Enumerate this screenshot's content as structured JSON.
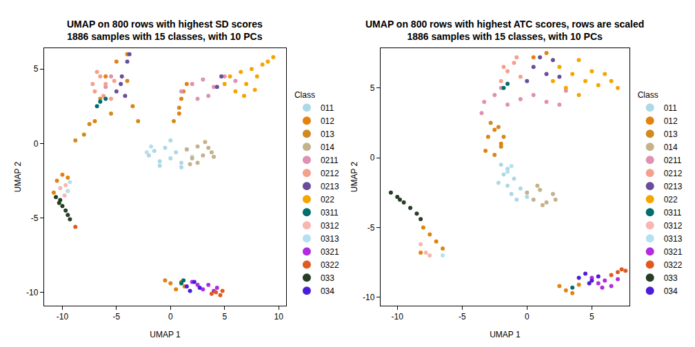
{
  "chart_data": [
    {
      "type": "scatter",
      "title": "UMAP on 800 rows with highest SD scores\n1886 samples with 15 classes, with 10 PCs",
      "xlabel": "UMAP 1",
      "ylabel": "UMAP 2",
      "legend_title": "Class",
      "legend": "right",
      "grid": false,
      "marker": "circle",
      "xlim": [
        -11.7,
        10.7
      ],
      "ylim": [
        -10.9,
        6.4
      ],
      "xticks": [
        -10,
        -5,
        0,
        5,
        10
      ],
      "yticks": [
        -10,
        -5,
        0,
        5
      ],
      "series": [
        {
          "name": "011",
          "color": "#ADD8E6",
          "x": [
            -2,
            -1.5,
            -1,
            -0.5,
            0,
            0.5,
            1,
            1.5,
            2,
            -1,
            0,
            1
          ],
          "y": [
            -0.8,
            -0.5,
            -1.2,
            -0.3,
            -1,
            -0.6,
            -1.3,
            -0.4,
            -0.9,
            -1.5,
            0.2,
            -1.6
          ]
        },
        {
          "name": "012",
          "color": "#E3820E",
          "x": [
            -0.5,
            0,
            0.5,
            1,
            1.3,
            -10.5,
            -10,
            -9.5,
            -10.8,
            -6,
            -5,
            -4,
            -3.5,
            -7,
            1,
            1.5,
            0.8
          ],
          "y": [
            -9.2,
            -9.4,
            -9.8,
            -9.3,
            -9.6,
            -2.5,
            -2.1,
            -2.3,
            -3.3,
            4.5,
            5.5,
            6,
            2.5,
            1.5,
            3,
            4,
            2
          ]
        },
        {
          "name": "013",
          "color": "#D18A1F",
          "x": [
            -8.8,
            -8,
            -7.5,
            -6.5,
            -5.5,
            0.3,
            0.8,
            1.2,
            -4,
            -3
          ],
          "y": [
            0.2,
            0.6,
            1.3,
            3,
            2,
            1.5,
            2.4,
            3.5,
            4.2,
            1.5
          ]
        },
        {
          "name": "014",
          "color": "#C4B28A",
          "x": [
            1.5,
            2,
            2.5,
            3,
            3.5,
            4,
            2.5,
            3.2,
            3.8,
            1.8
          ],
          "y": [
            -0.4,
            -1,
            -0.2,
            -0.8,
            -0.3,
            -0.9,
            -1.3,
            0.1,
            -0.6,
            -1.4
          ]
        },
        {
          "name": "0211",
          "color": "#E090B0",
          "x": [
            1,
            2,
            3,
            4,
            5,
            6,
            2.5,
            3.5,
            -5.5,
            -6
          ],
          "y": [
            3.5,
            4,
            4.3,
            3.8,
            4.5,
            4.2,
            3,
            3.2,
            4.5,
            3.8
          ]
        },
        {
          "name": "0212",
          "color": "#F4A08C",
          "x": [
            -7,
            -6.5,
            -6,
            -5.5,
            -6.8,
            -6.2,
            -5.2,
            -7.2
          ],
          "y": [
            3.5,
            4.5,
            4,
            3,
            4.8,
            3.2,
            4.2,
            4
          ]
        },
        {
          "name": "0213",
          "color": "#6A4C9C",
          "x": [
            -5,
            -4.5,
            -4,
            -3.8,
            -4.2,
            -4.6,
            4.3,
            4.7
          ],
          "y": [
            3.5,
            4.5,
            5.5,
            6,
            3.2,
            4,
            3.8,
            4.5
          ]
        },
        {
          "name": "022",
          "color": "#F5A500",
          "x": [
            5,
            5.5,
            6,
            6.5,
            7,
            7.5,
            8,
            8.5,
            9,
            9.5,
            6.8,
            7.8
          ],
          "y": [
            4,
            4.5,
            3.5,
            4.8,
            4,
            5,
            4.5,
            5.3,
            5.5,
            5.8,
            3.2,
            3.6
          ]
        },
        {
          "name": "0311",
          "color": "#006E6E",
          "x": [
            -6.8,
            -6.5,
            -6,
            1,
            1.2
          ],
          "y": [
            2.5,
            2.8,
            3,
            -9.4,
            -9.2
          ]
        },
        {
          "name": "0312",
          "color": "#F7B6AF",
          "x": [
            -9.7,
            -9.5,
            -9.8,
            -10.2
          ],
          "y": [
            -2.8,
            -3.2,
            -3.5,
            -3
          ]
        },
        {
          "name": "0313",
          "color": "#B5E0F0",
          "x": [
            -9.3,
            -9.5,
            -2.2,
            -1.8
          ],
          "y": [
            -2.6,
            -3.2,
            -0.6,
            -0.2
          ]
        },
        {
          "name": "0321",
          "color": "#B12CE0",
          "x": [
            2,
            2.5,
            3,
            3.5,
            4,
            4.3
          ],
          "y": [
            -9.3,
            -9.5,
            -9.8,
            -9.5,
            -9.9,
            -9.7
          ]
        },
        {
          "name": "0322",
          "color": "#E05A20",
          "x": [
            -8.8,
            3.8,
            4.2,
            4.6,
            4.8
          ],
          "y": [
            -5.6,
            -10.1,
            -10,
            -10.2,
            -9.9
          ]
        },
        {
          "name": "033",
          "color": "#263D26",
          "x": [
            -10.6,
            -10.3,
            -10,
            -9.7,
            -9.5,
            -9.3,
            -10.2
          ],
          "y": [
            -3.6,
            -4,
            -4.2,
            -4.5,
            -4.8,
            -5.1,
            -3.8
          ]
        },
        {
          "name": "034",
          "color": "#4A1ED8",
          "x": [
            1.5,
            1.8,
            2.2,
            2.7
          ],
          "y": [
            -9.6,
            -9.9,
            -9.3,
            -9.7
          ]
        }
      ]
    },
    {
      "type": "scatter",
      "title": "UMAP on 800 rows with highest ATC scores, rows are scaled\n1886 samples with 15 classes, with 10 PCs",
      "xlabel": "UMAP 1",
      "ylabel": "UMAP 2",
      "legend_title": "Class",
      "legend": "right",
      "grid": false,
      "marker": "circle",
      "xlim": [
        -11.3,
        7.9
      ],
      "ylim": [
        -10.6,
        7.85
      ],
      "xticks": [
        -10,
        -5,
        0,
        5
      ],
      "yticks": [
        -10,
        -5,
        0,
        5
      ],
      "series": [
        {
          "name": "011",
          "color": "#ADD8E6",
          "x": [
            -2,
            -1.8,
            -1.5,
            -1.2,
            -1,
            -0.5,
            0,
            -1.5,
            -0.8,
            -2.2
          ],
          "y": [
            -0.5,
            -1.2,
            -2,
            -2.6,
            -1.5,
            -2.2,
            -2.8,
            -0.8,
            -3,
            -1.8
          ]
        },
        {
          "name": "012",
          "color": "#E3820E",
          "x": [
            -3,
            -2.5,
            -2,
            -3.2,
            -8,
            -7.5,
            -7,
            -6.5,
            -8.2,
            2.5,
            3,
            3.5,
            4,
            0.5,
            1.5
          ],
          "y": [
            1.5,
            2,
            1,
            0.5,
            -5,
            -5.5,
            -6,
            -6.5,
            -6.8,
            -9.2,
            -9.5,
            -9.7,
            -9.1,
            7.2,
            7.5
          ]
        },
        {
          "name": "013",
          "color": "#D18A1F",
          "x": [
            -2.8,
            -2.2,
            -1.8,
            -2.5,
            -2
          ],
          "y": [
            2.5,
            2.2,
            1.5,
            0.2,
            0.8
          ]
        },
        {
          "name": "014",
          "color": "#C4B28A",
          "x": [
            0,
            0.5,
            1,
            1.5,
            2,
            0.8,
            1.2,
            2.2
          ],
          "y": [
            -2.5,
            -3,
            -2.3,
            -3.2,
            -2.6,
            -2,
            -3.4,
            -3
          ]
        },
        {
          "name": "0211",
          "color": "#E090B0",
          "x": [
            -3.5,
            -3.3,
            -2.5,
            -1.5,
            -0.5,
            0.5,
            1.5,
            2.5,
            3,
            -2
          ],
          "y": [
            3.2,
            4,
            4.5,
            3.8,
            4.2,
            4.5,
            4,
            3.8,
            4.8,
            5
          ]
        },
        {
          "name": "0212",
          "color": "#F4A08C",
          "x": [
            -2,
            -1.5,
            -1,
            -0.5,
            -1.8,
            -0.8
          ],
          "y": [
            5.5,
            6.2,
            6.8,
            5.8,
            6.5,
            7.2
          ]
        },
        {
          "name": "0213",
          "color": "#6A4C9C",
          "x": [
            0,
            0.5,
            1,
            1.5,
            2,
            2.5
          ],
          "y": [
            5.5,
            6.5,
            7.2,
            6,
            7,
            5.8
          ]
        },
        {
          "name": "022",
          "color": "#F5A500",
          "x": [
            2,
            2.5,
            3,
            3.5,
            4,
            4.5,
            5,
            5.5,
            6,
            6.5,
            7,
            4
          ],
          "y": [
            5.5,
            6.5,
            5,
            6,
            7,
            5.5,
            6.2,
            5.2,
            6,
            5.5,
            5,
            4.5
          ]
        },
        {
          "name": "0311",
          "color": "#006E6E",
          "x": [
            -1.8,
            -1.5,
            3.5
          ],
          "y": [
            5,
            5.3,
            -9.3
          ]
        },
        {
          "name": "0312",
          "color": "#F7B6AF",
          "x": [
            -8.2,
            -7.8,
            -7.5
          ],
          "y": [
            -6.2,
            -6.8,
            -7
          ]
        },
        {
          "name": "0313",
          "color": "#B5E0F0",
          "x": [
            -6.5,
            -1.5,
            -1.2
          ],
          "y": [
            -7,
            -1,
            -0.6
          ]
        },
        {
          "name": "0321",
          "color": "#B12CE0",
          "x": [
            5,
            5.5,
            6,
            6.5,
            7,
            5.8
          ],
          "y": [
            -8.6,
            -9,
            -8.8,
            -9.2,
            -8.7,
            -9.3
          ]
        },
        {
          "name": "0322",
          "color": "#E05A20",
          "x": [
            6.5,
            7,
            7.3,
            7.6
          ],
          "y": [
            -8.4,
            -8.2,
            -8,
            -8.1
          ]
        },
        {
          "name": "033",
          "color": "#263D26",
          "x": [
            -10.5,
            -10,
            -9.5,
            -9,
            -8.5,
            -8.2,
            -9.8
          ],
          "y": [
            -2.5,
            -2.8,
            -3.2,
            -3.6,
            -4,
            -4.4,
            -3
          ]
        },
        {
          "name": "034",
          "color": "#4A1ED8",
          "x": [
            4,
            4.5,
            5,
            5.5,
            4.8
          ],
          "y": [
            -8.6,
            -8.3,
            -8.8,
            -8.5,
            -9
          ]
        }
      ]
    }
  ]
}
